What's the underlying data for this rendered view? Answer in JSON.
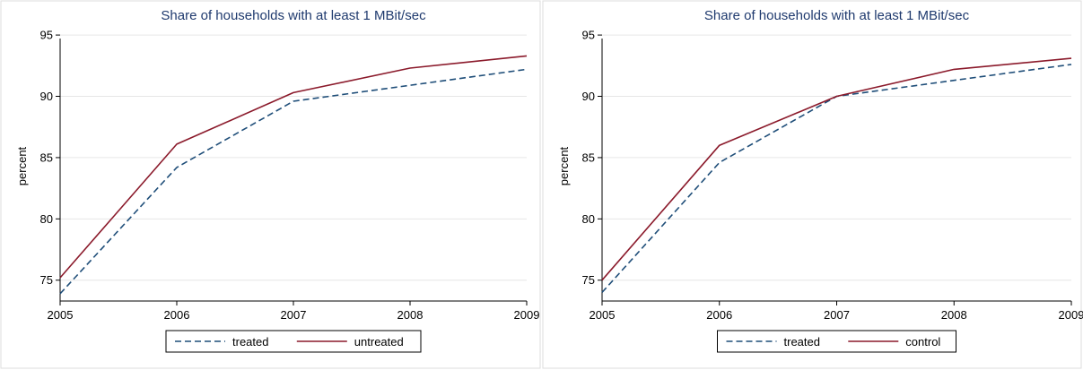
{
  "colors": {
    "treated": "#1f4e79",
    "untreated": "#8b1a2b",
    "grid": "#e6e6e6",
    "title": "#1f3a6e"
  },
  "chart_data": [
    {
      "type": "line",
      "title": "Share of households with at least 1 MBit/sec",
      "xlabel": "",
      "ylabel": "percent",
      "x": [
        2005,
        2006,
        2007,
        2008,
        2009
      ],
      "ylim": [
        73.3,
        95.3
      ],
      "yticks": [
        75,
        80,
        85,
        90,
        95
      ],
      "grid": true,
      "legend": "bottom",
      "series": [
        {
          "name": "treated",
          "style": "dashed",
          "color_key": "treated",
          "values": [
            73.9,
            84.2,
            89.6,
            90.9,
            92.2
          ]
        },
        {
          "name": "untreated",
          "style": "solid",
          "color_key": "untreated",
          "values": [
            75.2,
            86.1,
            90.3,
            92.3,
            93.3
          ]
        }
      ]
    },
    {
      "type": "line",
      "title": "Share of households with at least 1 MBit/sec",
      "xlabel": "",
      "ylabel": "percent",
      "x": [
        2005,
        2006,
        2007,
        2008,
        2009
      ],
      "ylim": [
        73.3,
        95.3
      ],
      "yticks": [
        75,
        80,
        85,
        90,
        95
      ],
      "grid": true,
      "legend": "bottom",
      "series": [
        {
          "name": "treated",
          "style": "dashed",
          "color_key": "treated",
          "values": [
            74.0,
            84.6,
            90.0,
            91.3,
            92.6
          ]
        },
        {
          "name": "control",
          "style": "solid",
          "color_key": "untreated",
          "values": [
            75.0,
            86.0,
            90.0,
            92.2,
            93.1
          ]
        }
      ]
    }
  ]
}
